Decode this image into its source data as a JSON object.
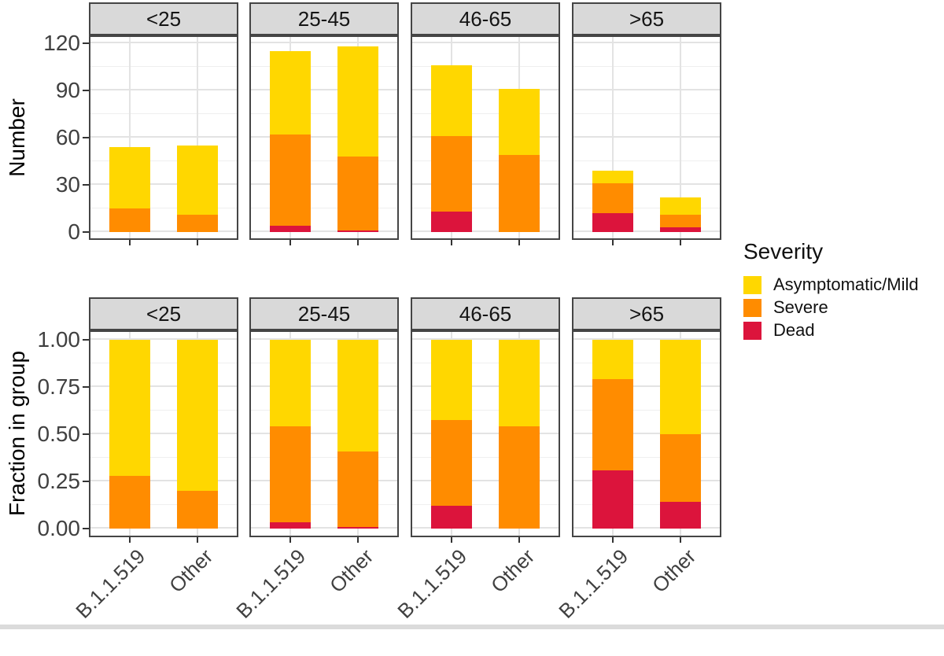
{
  "colors": {
    "mild": "#FFD700",
    "severe": "#FF8C00",
    "dead": "#DC143C",
    "strip_bg": "#D9D9D9",
    "panel_border": "#454545",
    "grid_major": "#E3E3E3",
    "grid_minor": "#EFEFEF",
    "tick": "#333333",
    "tick_text": "#404040"
  },
  "legend": {
    "title": "Severity",
    "position": "right",
    "items": [
      {
        "key": "mild",
        "label": "Asymptomatic/Mild",
        "color": "#FFD700"
      },
      {
        "key": "severe",
        "label": "Severe",
        "color": "#FF8C00"
      },
      {
        "key": "dead",
        "label": "Dead",
        "color": "#DC143C"
      }
    ]
  },
  "chart_data": [
    {
      "type": "bar",
      "stacked": true,
      "ylabel": "Number",
      "ylim": [
        0,
        124
      ],
      "grid": true,
      "ytick_labels": [
        "120",
        "90",
        "60",
        "30",
        "0"
      ],
      "ytick_values": [
        120,
        90,
        60,
        30,
        0
      ],
      "yminor_values": [
        105,
        75,
        45,
        15
      ],
      "categories": [
        "B.1.1.519",
        "Other"
      ],
      "stack_order_bottom_to_top": [
        "Dead",
        "Severe",
        "Asymptomatic/Mild"
      ],
      "facets": [
        {
          "label": "<25",
          "bars": [
            {
              "category": "B.1.1.519",
              "dead": 0,
              "severe": 15,
              "mild": 39
            },
            {
              "category": "Other",
              "dead": 0,
              "severe": 11,
              "mild": 44
            }
          ]
        },
        {
          "label": "25-45",
          "bars": [
            {
              "category": "B.1.1.519",
              "dead": 4,
              "severe": 58,
              "mild": 53
            },
            {
              "category": "Other",
              "dead": 1,
              "severe": 47,
              "mild": 70
            }
          ]
        },
        {
          "label": "46-65",
          "bars": [
            {
              "category": "B.1.1.519",
              "dead": 13,
              "severe": 48,
              "mild": 45
            },
            {
              "category": "Other",
              "dead": 0,
              "severe": 49,
              "mild": 42
            }
          ]
        },
        {
          "label": ">65",
          "bars": [
            {
              "category": "B.1.1.519",
              "dead": 12,
              "severe": 19,
              "mild": 8
            },
            {
              "category": "Other",
              "dead": 3,
              "severe": 8,
              "mild": 11
            }
          ]
        }
      ]
    },
    {
      "type": "bar",
      "stacked": true,
      "ylabel": "Fraction in group",
      "ylim": [
        0,
        1.04
      ],
      "grid": true,
      "ytick_labels": [
        "1.00",
        "0.75",
        "0.50",
        "0.25",
        "0.00"
      ],
      "ytick_values": [
        1.0,
        0.75,
        0.5,
        0.25,
        0
      ],
      "yminor_values": [
        0.875,
        0.625,
        0.375,
        0.125
      ],
      "categories": [
        "B.1.1.519",
        "Other"
      ],
      "stack_order_bottom_to_top": [
        "Dead",
        "Severe",
        "Asymptomatic/Mild"
      ],
      "facets": [
        {
          "label": "<25",
          "bars": [
            {
              "category": "B.1.1.519",
              "dead": 0,
              "severe": 0.28,
              "mild": 0.72
            },
            {
              "category": "Other",
              "dead": 0,
              "severe": 0.2,
              "mild": 0.8
            }
          ]
        },
        {
          "label": "25-45",
          "bars": [
            {
              "category": "B.1.1.519",
              "dead": 0.035,
              "severe": 0.505,
              "mild": 0.46
            },
            {
              "category": "Other",
              "dead": 0.01,
              "severe": 0.4,
              "mild": 0.59
            }
          ]
        },
        {
          "label": "46-65",
          "bars": [
            {
              "category": "B.1.1.519",
              "dead": 0.12,
              "severe": 0.455,
              "mild": 0.425
            },
            {
              "category": "Other",
              "dead": 0,
              "severe": 0.54,
              "mild": 0.46
            }
          ]
        },
        {
          "label": ">65",
          "bars": [
            {
              "category": "B.1.1.519",
              "dead": 0.31,
              "severe": 0.48,
              "mild": 0.21
            },
            {
              "category": "Other",
              "dead": 0.14,
              "severe": 0.36,
              "mild": 0.5
            }
          ]
        }
      ]
    }
  ]
}
